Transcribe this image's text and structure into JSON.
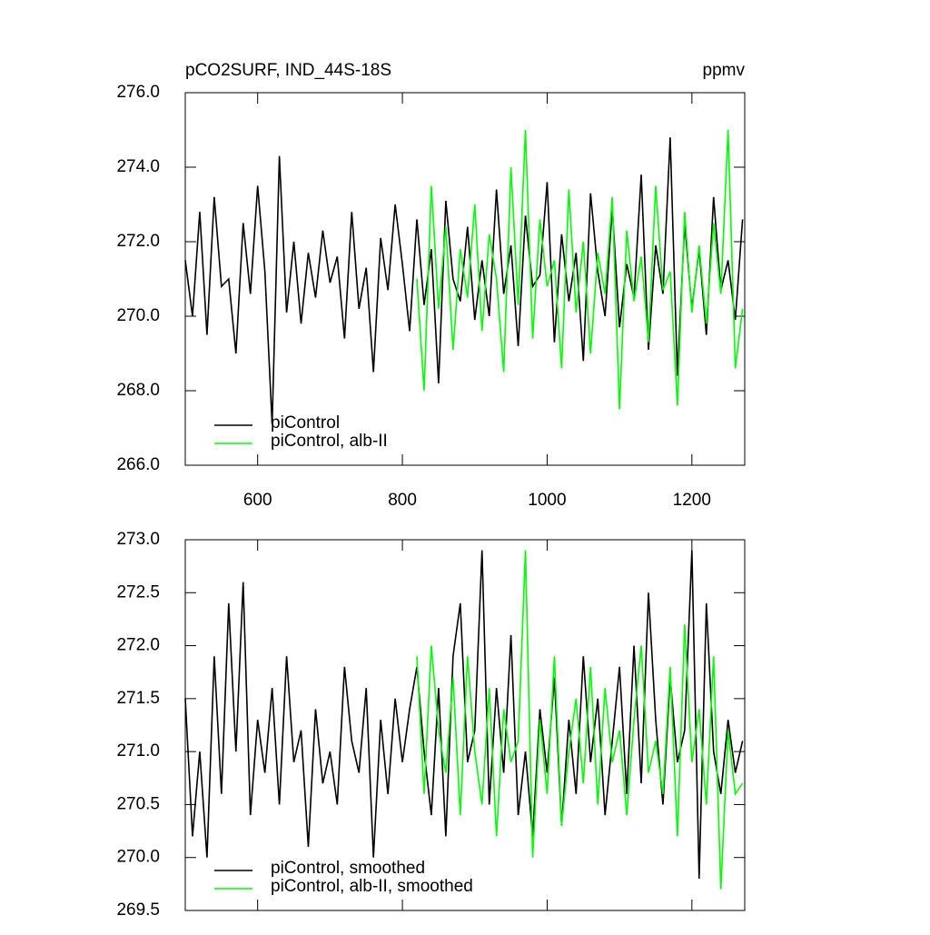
{
  "chart_data": [
    {
      "type": "line",
      "title": "pCO2SURF, IND_44S-18S",
      "units": "ppmv",
      "x": [
        500,
        510,
        520,
        530,
        540,
        550,
        560,
        570,
        580,
        590,
        600,
        610,
        620,
        630,
        640,
        650,
        660,
        670,
        680,
        690,
        700,
        710,
        720,
        730,
        740,
        750,
        760,
        770,
        780,
        790,
        800,
        810,
        820,
        830,
        840,
        850,
        860,
        870,
        880,
        890,
        900,
        910,
        920,
        930,
        940,
        950,
        960,
        970,
        980,
        990,
        1000,
        1010,
        1020,
        1030,
        1040,
        1050,
        1060,
        1070,
        1080,
        1090,
        1100,
        1110,
        1120,
        1130,
        1140,
        1150,
        1160,
        1170,
        1180,
        1190,
        1200,
        1210,
        1220,
        1230,
        1240,
        1250,
        1260,
        1270
      ],
      "series": [
        {
          "name": "piControl",
          "color": "#000000",
          "values": [
            271.5,
            270.0,
            272.8,
            269.5,
            273.2,
            270.8,
            271.0,
            269.0,
            272.5,
            270.6,
            273.5,
            271.2,
            267.1,
            274.3,
            270.1,
            272.0,
            269.8,
            271.7,
            270.5,
            272.3,
            270.9,
            271.6,
            269.4,
            272.8,
            270.2,
            271.3,
            268.5,
            272.1,
            270.7,
            273.0,
            271.4,
            269.6,
            272.6,
            270.3,
            271.8,
            268.2,
            273.1,
            271.0,
            270.4,
            272.4,
            269.9,
            271.5,
            270.0,
            273.4,
            270.6,
            271.9,
            269.2,
            272.7,
            270.8,
            271.1,
            273.6,
            269.3,
            272.2,
            270.4,
            271.7,
            268.8,
            273.3,
            271.2,
            270.0,
            272.9,
            269.7,
            271.4,
            270.5,
            273.8,
            269.1,
            271.9,
            270.6,
            274.8,
            268.4,
            272.5,
            270.2,
            271.8,
            269.5,
            273.2,
            270.7,
            271.5,
            269.9,
            272.6
          ]
        },
        {
          "name": "piControl, alb-II",
          "color": "#00ff00",
          "values": [
            null,
            null,
            null,
            null,
            null,
            null,
            null,
            null,
            null,
            null,
            null,
            null,
            null,
            null,
            null,
            null,
            null,
            null,
            null,
            null,
            null,
            null,
            null,
            null,
            null,
            null,
            null,
            null,
            null,
            null,
            null,
            null,
            271.0,
            268.0,
            273.5,
            270.2,
            272.4,
            269.1,
            271.8,
            270.5,
            273.0,
            269.6,
            272.2,
            271.0,
            268.5,
            274.0,
            270.3,
            275.0,
            269.4,
            272.6,
            270.8,
            271.5,
            268.6,
            273.4,
            270.1,
            272.0,
            269.0,
            271.7,
            270.6,
            273.2,
            267.5,
            272.3,
            270.4,
            271.6,
            269.3,
            273.5,
            270.7,
            271.2,
            267.6,
            272.8,
            270.1,
            271.9,
            269.8,
            272.5,
            270.6,
            275.0,
            268.6,
            270.2
          ]
        }
      ],
      "xlim": [
        500,
        1273
      ],
      "xticks": [
        600,
        800,
        1000,
        1200
      ],
      "ylim": [
        266,
        276
      ],
      "yticks": [
        {
          "value": 266,
          "label": "266.0"
        },
        {
          "value": 268,
          "label": "268.0"
        },
        {
          "value": 270,
          "label": "270.0"
        },
        {
          "value": 272,
          "label": "272.0"
        },
        {
          "value": 274,
          "label": "274.0"
        },
        {
          "value": 276,
          "label": "276.0"
        }
      ],
      "legend": "lower left"
    },
    {
      "type": "line",
      "x": [
        500,
        510,
        520,
        530,
        540,
        550,
        560,
        570,
        580,
        590,
        600,
        610,
        620,
        630,
        640,
        650,
        660,
        670,
        680,
        690,
        700,
        710,
        720,
        730,
        740,
        750,
        760,
        770,
        780,
        790,
        800,
        810,
        820,
        830,
        840,
        850,
        860,
        870,
        880,
        890,
        900,
        910,
        920,
        930,
        940,
        950,
        960,
        970,
        980,
        990,
        1000,
        1010,
        1020,
        1030,
        1040,
        1050,
        1060,
        1070,
        1080,
        1090,
        1100,
        1110,
        1120,
        1130,
        1140,
        1150,
        1160,
        1170,
        1180,
        1190,
        1200,
        1210,
        1220,
        1230,
        1240,
        1250,
        1260,
        1270
      ],
      "series": [
        {
          "name": "piControl, smoothed",
          "color": "#000000",
          "values": [
            271.5,
            270.2,
            271.0,
            270.0,
            271.9,
            270.6,
            272.4,
            271.0,
            272.6,
            270.4,
            271.3,
            270.8,
            271.6,
            270.5,
            271.9,
            270.9,
            271.2,
            270.1,
            271.4,
            270.7,
            271.0,
            270.5,
            271.8,
            271.1,
            270.8,
            271.6,
            270.0,
            271.3,
            270.6,
            271.5,
            270.9,
            271.4,
            271.8,
            271.0,
            270.4,
            271.6,
            270.2,
            271.9,
            272.4,
            270.9,
            271.2,
            272.9,
            270.5,
            271.6,
            270.8,
            272.1,
            270.4,
            271.0,
            270.2,
            271.4,
            270.8,
            271.7,
            270.3,
            271.3,
            270.6,
            271.9,
            270.9,
            271.5,
            270.4,
            271.1,
            271.8,
            270.6,
            272.0,
            270.7,
            272.5,
            271.3,
            270.5,
            271.7,
            270.9,
            271.2,
            272.9,
            269.8,
            272.4,
            271.0,
            270.6,
            271.3,
            270.8,
            271.1
          ]
        },
        {
          "name": "piControl, alb-II, smoothed",
          "color": "#00ff00",
          "values": [
            null,
            null,
            null,
            null,
            null,
            null,
            null,
            null,
            null,
            null,
            null,
            null,
            null,
            null,
            null,
            null,
            null,
            null,
            null,
            null,
            null,
            null,
            null,
            null,
            null,
            null,
            null,
            null,
            null,
            null,
            null,
            null,
            271.9,
            270.6,
            272.0,
            271.2,
            270.8,
            271.7,
            270.4,
            271.9,
            271.0,
            270.5,
            271.6,
            270.2,
            271.4,
            270.9,
            271.1,
            272.9,
            270.0,
            271.3,
            270.6,
            271.9,
            270.3,
            271.0,
            271.5,
            270.7,
            271.8,
            270.5,
            271.6,
            270.9,
            271.2,
            270.4,
            271.3,
            272.0,
            270.8,
            271.1,
            270.6,
            271.8,
            270.2,
            272.2,
            270.9,
            271.4,
            270.5,
            271.9,
            269.7,
            271.2,
            270.6,
            270.7
          ]
        }
      ],
      "xlim": [
        500,
        1273
      ],
      "xticks": [
        600,
        800,
        1000,
        1200
      ],
      "ylim": [
        269.5,
        273
      ],
      "yticks": [
        {
          "value": 269.5,
          "label": "269.5"
        },
        {
          "value": 270,
          "label": "270.0"
        },
        {
          "value": 270.5,
          "label": "270.5"
        },
        {
          "value": 271,
          "label": "271.0"
        },
        {
          "value": 271.5,
          "label": "271.5"
        },
        {
          "value": 272,
          "label": "272.0"
        },
        {
          "value": 272.5,
          "label": "272.5"
        },
        {
          "value": 273,
          "label": "273.0"
        }
      ],
      "legend": "lower left"
    }
  ]
}
